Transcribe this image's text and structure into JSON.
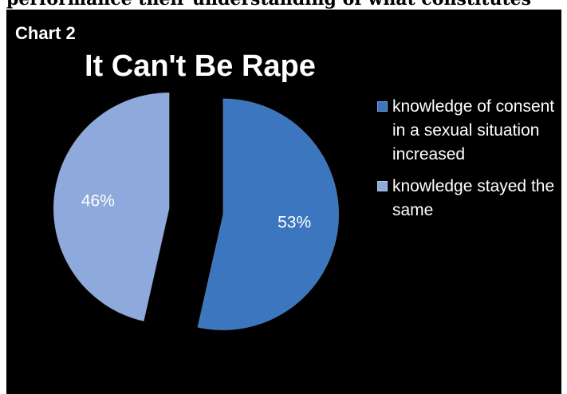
{
  "document": {
    "top_line": "performance their understanding of what constitutes"
  },
  "chart_number": "Chart 2",
  "chart_data": {
    "type": "pie",
    "title": "It Can't Be Rape",
    "slices": [
      {
        "name": "knowledge of consent in a sexual situation increased",
        "value": 53,
        "label": "53%",
        "color": "#3c76bf"
      },
      {
        "name": "knowledge stayed the same",
        "value": 46,
        "label": "46%",
        "color": "#8ea9db"
      }
    ],
    "legend_position": "right"
  }
}
